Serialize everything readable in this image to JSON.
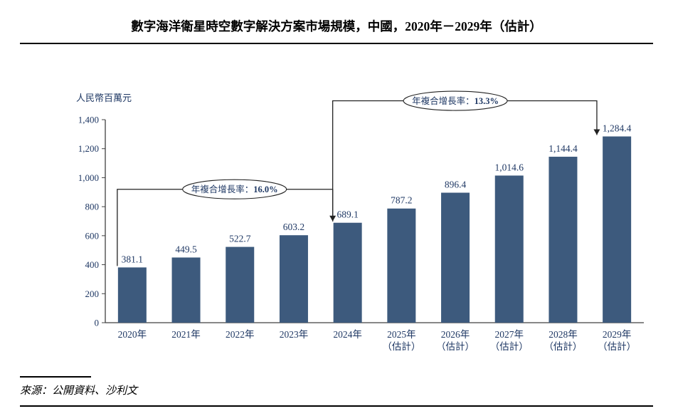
{
  "footer": {
    "source": "來源：公開資料、沙利文"
  },
  "chart_data": {
    "type": "bar",
    "title": "數字海洋衛星時空數字解決方案市場規模，中國，2020年－2029年（估計）",
    "unit_label": "人民幣百萬元",
    "bar_color": "#3d5a7d",
    "label_color": "#1f3864",
    "axis_color": "#404040",
    "annotation_line_color": "#222222",
    "categories": [
      "2020年",
      "2021年",
      "2022年",
      "2023年",
      "2024年",
      "2025年",
      "2026年",
      "2027年",
      "2028年",
      "2029年"
    ],
    "category_sublabels": [
      "",
      "",
      "",
      "",
      "",
      "（估計）",
      "（估計）",
      "（估計）",
      "（估計）",
      "（估計）"
    ],
    "values": [
      381.1,
      449.5,
      522.7,
      603.2,
      689.1,
      787.2,
      896.4,
      1014.6,
      1144.4,
      1284.4
    ],
    "value_labels": [
      "381.1",
      "449.5",
      "522.7",
      "603.2",
      "689.1",
      "787.2",
      "896.4",
      "1,014.6",
      "1,144.4",
      "1,284.4"
    ],
    "ylim": [
      0,
      1400
    ],
    "ytick_step": 200,
    "ytick_labels": [
      "0",
      "200",
      "400",
      "600",
      "800",
      "1,000",
      "1,200",
      "1,400"
    ],
    "grid": false,
    "legend": "none",
    "annotations": [
      {
        "label": "年複合增長率：",
        "value": "16.0%",
        "from_index": 0,
        "to_index": 4,
        "level": 920,
        "ellipse_index": 1.9
      },
      {
        "label": "年複合增長率：",
        "value": "13.3%",
        "from_index": 4,
        "to_index": 9,
        "level": 1530,
        "ellipse_index": 6.0
      }
    ]
  }
}
